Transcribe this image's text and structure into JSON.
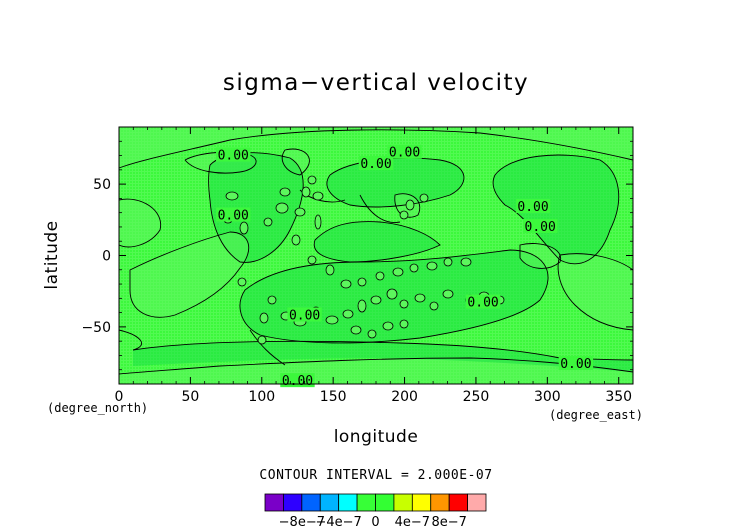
{
  "chart_data": {
    "type": "heatmap",
    "title": "sigma−vertical velocity",
    "xlabel": "longitude",
    "ylabel": "latitude",
    "x_unit": "(degree_east)",
    "y_unit": "(degree_north)",
    "xlim": [
      0,
      360
    ],
    "ylim": [
      -90,
      90
    ],
    "x_ticks": [
      0,
      50,
      100,
      150,
      200,
      250,
      300,
      350
    ],
    "y_ticks": [
      -50,
      0,
      50
    ],
    "x_tick_labels": [
      "0",
      "50",
      "100",
      "150",
      "200",
      "250",
      "300",
      "350"
    ],
    "y_tick_labels": [
      "−50",
      "0",
      "50"
    ],
    "contour_interval_text": "CONTOUR INTERVAL = 2.000E-07",
    "contour_labels": [
      {
        "text": "0.00",
        "lon": 80,
        "lat": 70
      },
      {
        "text": "0.00",
        "lon": 180,
        "lat": 64
      },
      {
        "text": "0.00",
        "lon": 200,
        "lat": 72
      },
      {
        "text": "0.00",
        "lon": 80,
        "lat": 28
      },
      {
        "text": "0.00",
        "lon": 290,
        "lat": 34
      },
      {
        "text": "0.00",
        "lon": 295,
        "lat": 20
      },
      {
        "text": "0.00",
        "lon": 130,
        "lat": -42
      },
      {
        "text": "0.00",
        "lon": 255,
        "lat": -33
      },
      {
        "text": "0.00",
        "lon": 320,
        "lat": -76
      },
      {
        "text": "0.00",
        "lon": 125,
        "lat": -88
      }
    ],
    "colorbar": {
      "colors": [
        "#7a00c8",
        "#2e00ff",
        "#0064ff",
        "#00b4ff",
        "#00ffff",
        "#37ff37",
        "#33ff33",
        "#c8ff00",
        "#ffff00",
        "#ff9600",
        "#ff0000",
        "#ffaaaa"
      ],
      "labels": [
        "−8e−7",
        "−4e−7",
        "0",
        "4e−7",
        "8e−7"
      ]
    },
    "field_colors": {
      "base": "#33ff33",
      "light": "#5cf65c",
      "dark": "#1be046"
    },
    "grid": false
  }
}
